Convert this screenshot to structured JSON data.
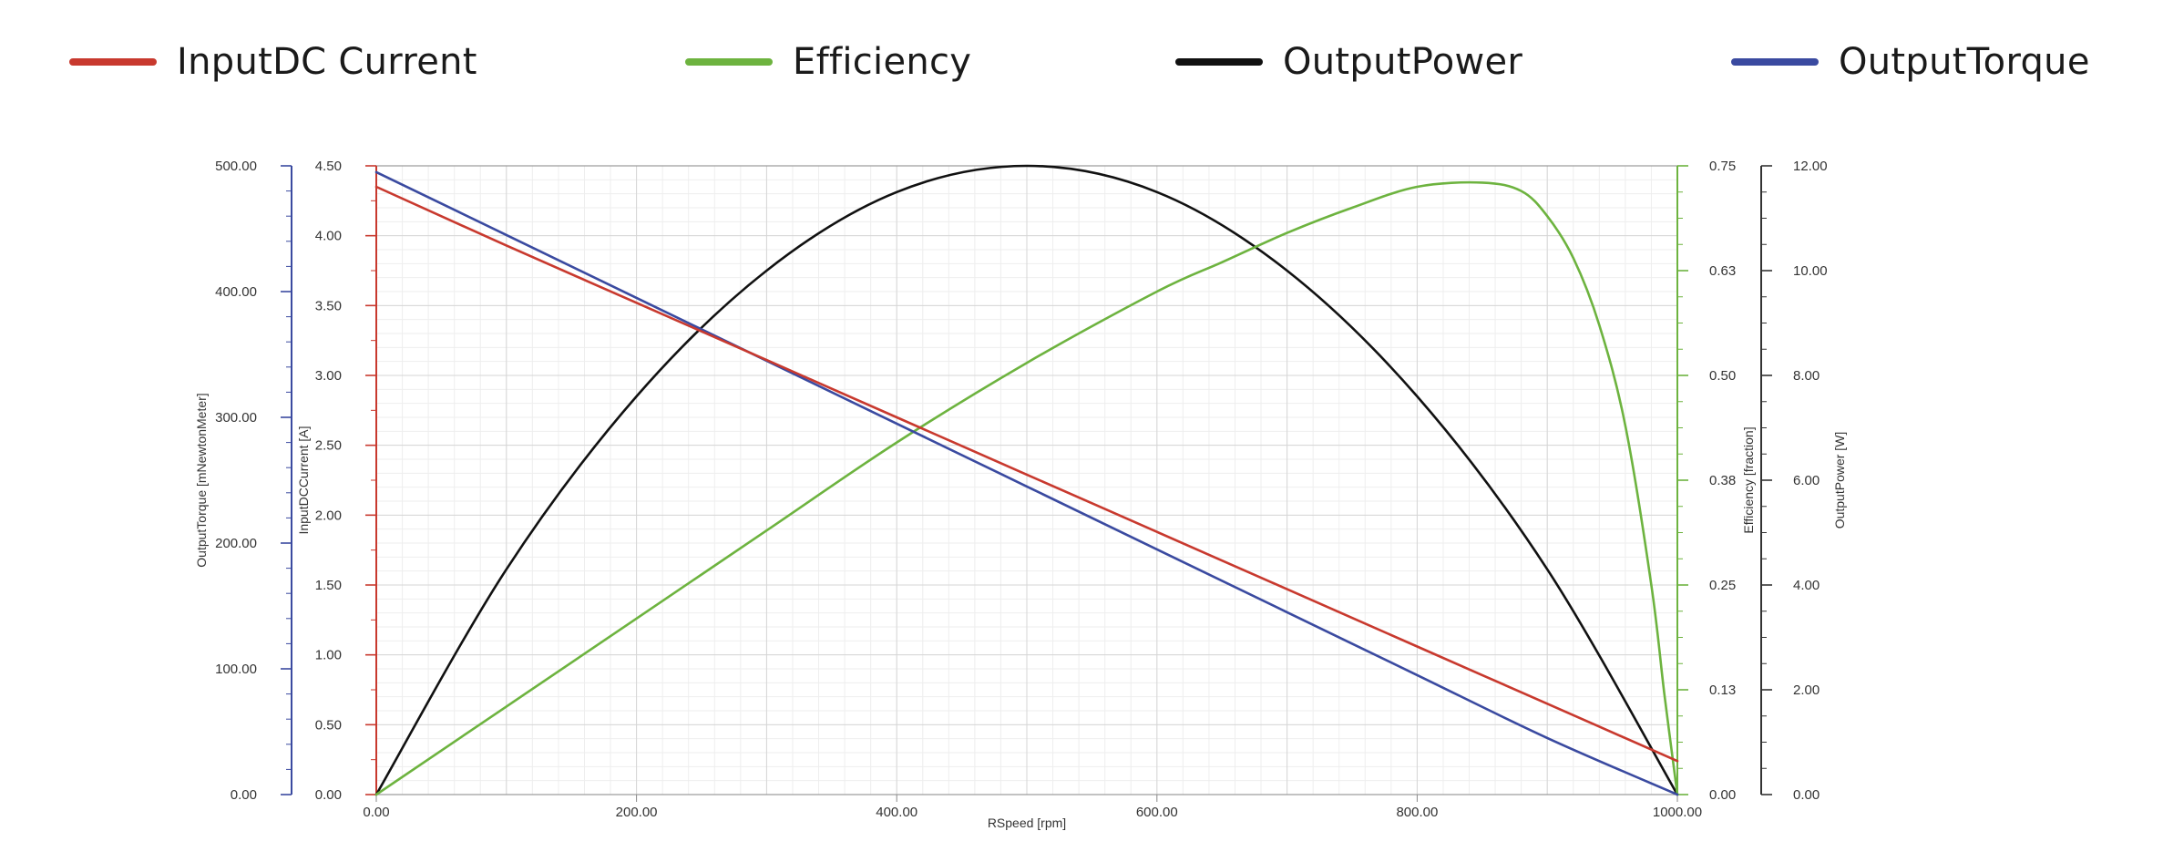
{
  "legend": [
    {
      "label": "InputDC Current",
      "color": "#c8392e"
    },
    {
      "label": "Efficiency",
      "color": "#6db33f"
    },
    {
      "label": "OutputPower",
      "color": "#111111"
    },
    {
      "label": "OutputTorque",
      "color": "#3a4aa0"
    }
  ],
  "chart_data": {
    "type": "line",
    "grid": true,
    "legend_position": "top",
    "xlabel": "RSpeed [rpm]",
    "xlim": [
      0,
      1000
    ],
    "xticks": [
      "0.00",
      "200.00",
      "400.00",
      "600.00",
      "800.00",
      "1000.00"
    ],
    "axes": {
      "torque": {
        "label": "OutputTorque [mNewtonMeter]",
        "range": [
          0,
          500
        ],
        "ticks": [
          "0.00",
          "100.00",
          "200.00",
          "300.00",
          "400.00",
          "500.00"
        ],
        "color": "#3a4aa0"
      },
      "current": {
        "label": "InputDCCurrent [A]",
        "range": [
          0,
          4.5
        ],
        "ticks": [
          "0.00",
          "0.50",
          "1.00",
          "1.50",
          "2.00",
          "2.50",
          "3.00",
          "3.50",
          "4.00",
          "4.50"
        ],
        "color": "#c8392e"
      },
      "efficiency": {
        "label": "Efficiency [fraction]",
        "range": [
          0,
          0.75
        ],
        "ticks": [
          "0.00",
          "0.13",
          "0.25",
          "0.38",
          "0.50",
          "0.63",
          "0.75"
        ],
        "color": "#6db33f"
      },
      "power": {
        "label": "OutputPower [W]",
        "range": [
          0,
          12
        ],
        "ticks": [
          "0.00",
          "2.00",
          "4.00",
          "6.00",
          "8.00",
          "10.00",
          "12.00"
        ],
        "color": "#333333"
      }
    },
    "series": [
      {
        "name": "InputDC Current",
        "axis": "current",
        "color": "#c8392e",
        "x": [
          0,
          100,
          200,
          300,
          400,
          500,
          600,
          700,
          800,
          900,
          1000
        ],
        "y": [
          4.35,
          3.93,
          3.52,
          3.11,
          2.7,
          2.29,
          1.88,
          1.47,
          1.06,
          0.65,
          0.24
        ]
      },
      {
        "name": "Efficiency",
        "axis": "efficiency",
        "color": "#6db33f",
        "x": [
          0,
          100,
          200,
          300,
          400,
          500,
          600,
          650,
          700,
          750,
          800,
          850,
          880,
          900,
          920,
          940,
          960,
          980,
          990,
          1000
        ],
        "y": [
          0.0,
          0.105,
          0.21,
          0.315,
          0.42,
          0.515,
          0.6,
          0.635,
          0.67,
          0.7,
          0.725,
          0.73,
          0.72,
          0.69,
          0.64,
          0.56,
          0.44,
          0.25,
          0.12,
          0.0
        ]
      },
      {
        "name": "OutputPower",
        "axis": "power",
        "color": "#111111",
        "x": [
          0,
          100,
          200,
          300,
          400,
          500,
          600,
          700,
          800,
          900,
          1000
        ],
        "y": [
          0.0,
          4.3,
          7.6,
          10.0,
          11.5,
          12.0,
          11.5,
          10.0,
          7.6,
          4.3,
          0.0
        ]
      },
      {
        "name": "OutputTorque",
        "axis": "torque",
        "color": "#3a4aa0",
        "x": [
          0,
          100,
          200,
          300,
          400,
          500,
          600,
          700,
          800,
          900,
          1000
        ],
        "y": [
          495,
          445,
          395,
          345,
          295,
          245,
          195,
          145,
          95,
          45,
          0
        ]
      }
    ]
  }
}
